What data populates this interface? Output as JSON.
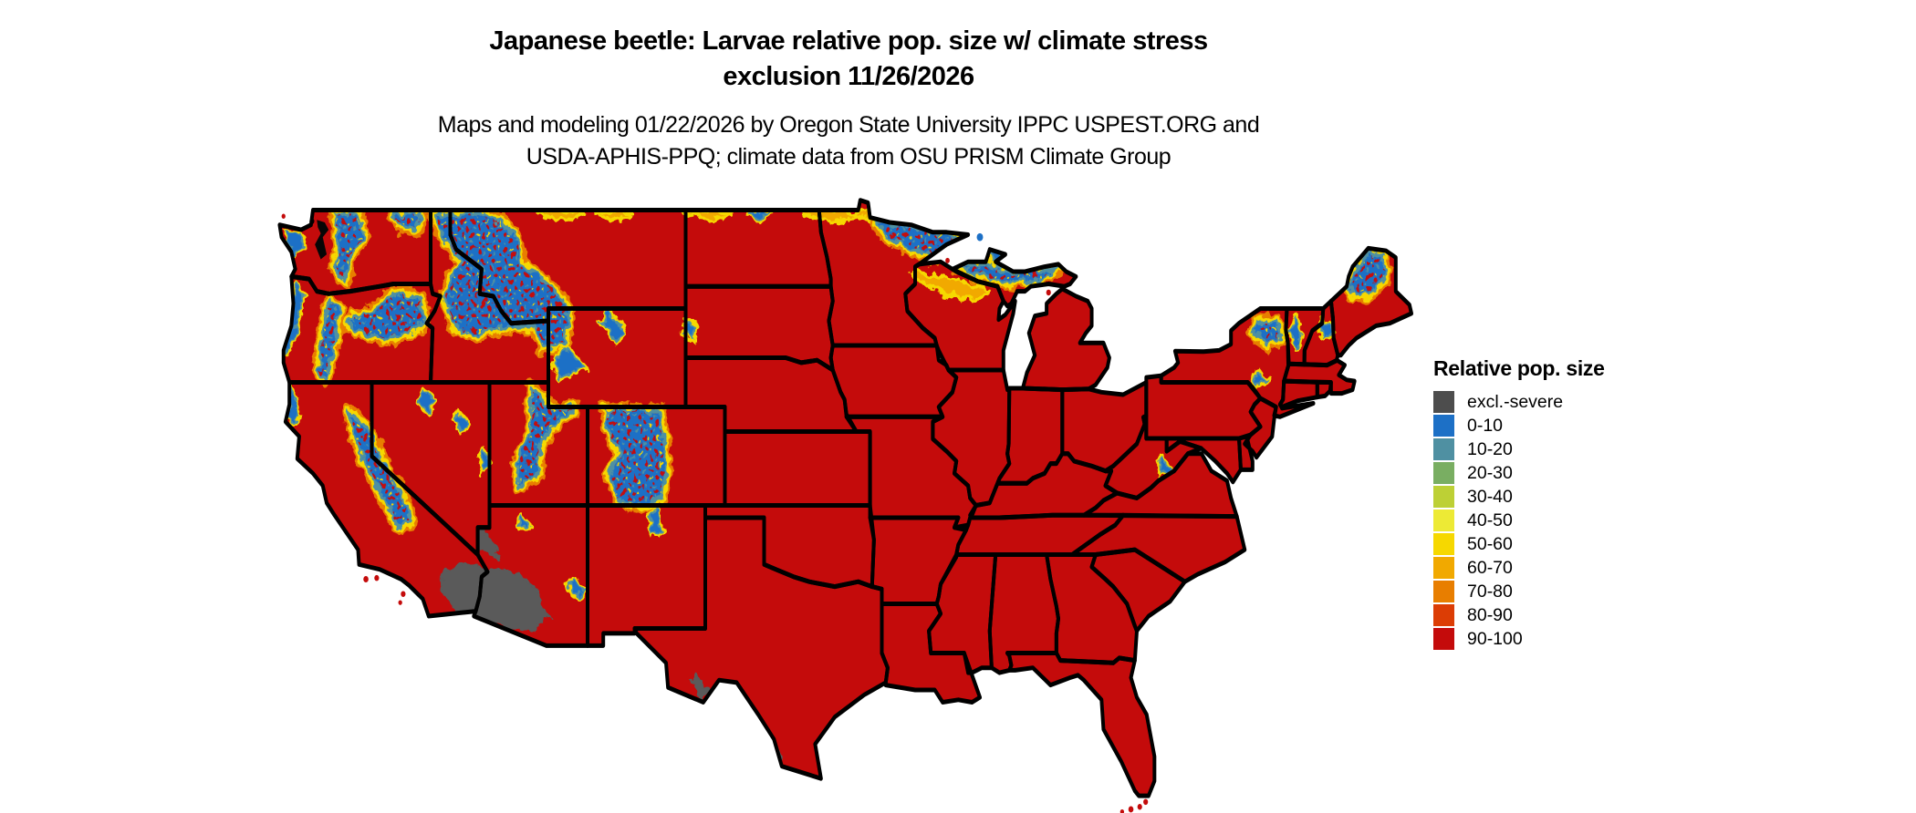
{
  "header": {
    "title_line1": "Japanese beetle: Larvae relative pop. size w/ climate stress",
    "title_line2": "exclusion 11/26/2026",
    "subtitle_line1": "Maps and modeling 01/22/2026 by Oregon State University IPPC USPEST.ORG and",
    "subtitle_line2": "USDA-APHIS-PPQ; climate data from OSU PRISM Climate Group"
  },
  "legend": {
    "title": "Relative pop. size",
    "items": [
      {
        "label": "excl.-severe",
        "color": "#4d4d4d"
      },
      {
        "label": "0-10",
        "color": "#1d70c6"
      },
      {
        "label": "10-20",
        "color": "#4f90a2"
      },
      {
        "label": "20-30",
        "color": "#79ae62"
      },
      {
        "label": "30-40",
        "color": "#bdd035"
      },
      {
        "label": "40-50",
        "color": "#edea35"
      },
      {
        "label": "50-60",
        "color": "#f6d800"
      },
      {
        "label": "60-70",
        "color": "#f1a900"
      },
      {
        "label": "70-80",
        "color": "#e87e00"
      },
      {
        "label": "80-90",
        "color": "#dc3d05"
      },
      {
        "label": "90-100",
        "color": "#c40b0b"
      }
    ]
  },
  "map": {
    "background": "#ffffff",
    "border_color": "#000000",
    "base_color": "#c40b0b",
    "low_color": "#1d70c6",
    "teal_color": "#4f90a2",
    "yellow_color": "#f6d800",
    "orange_color": "#e87e00",
    "amber_color": "#f1a900",
    "exclusion_color": "#5a5a5a"
  }
}
